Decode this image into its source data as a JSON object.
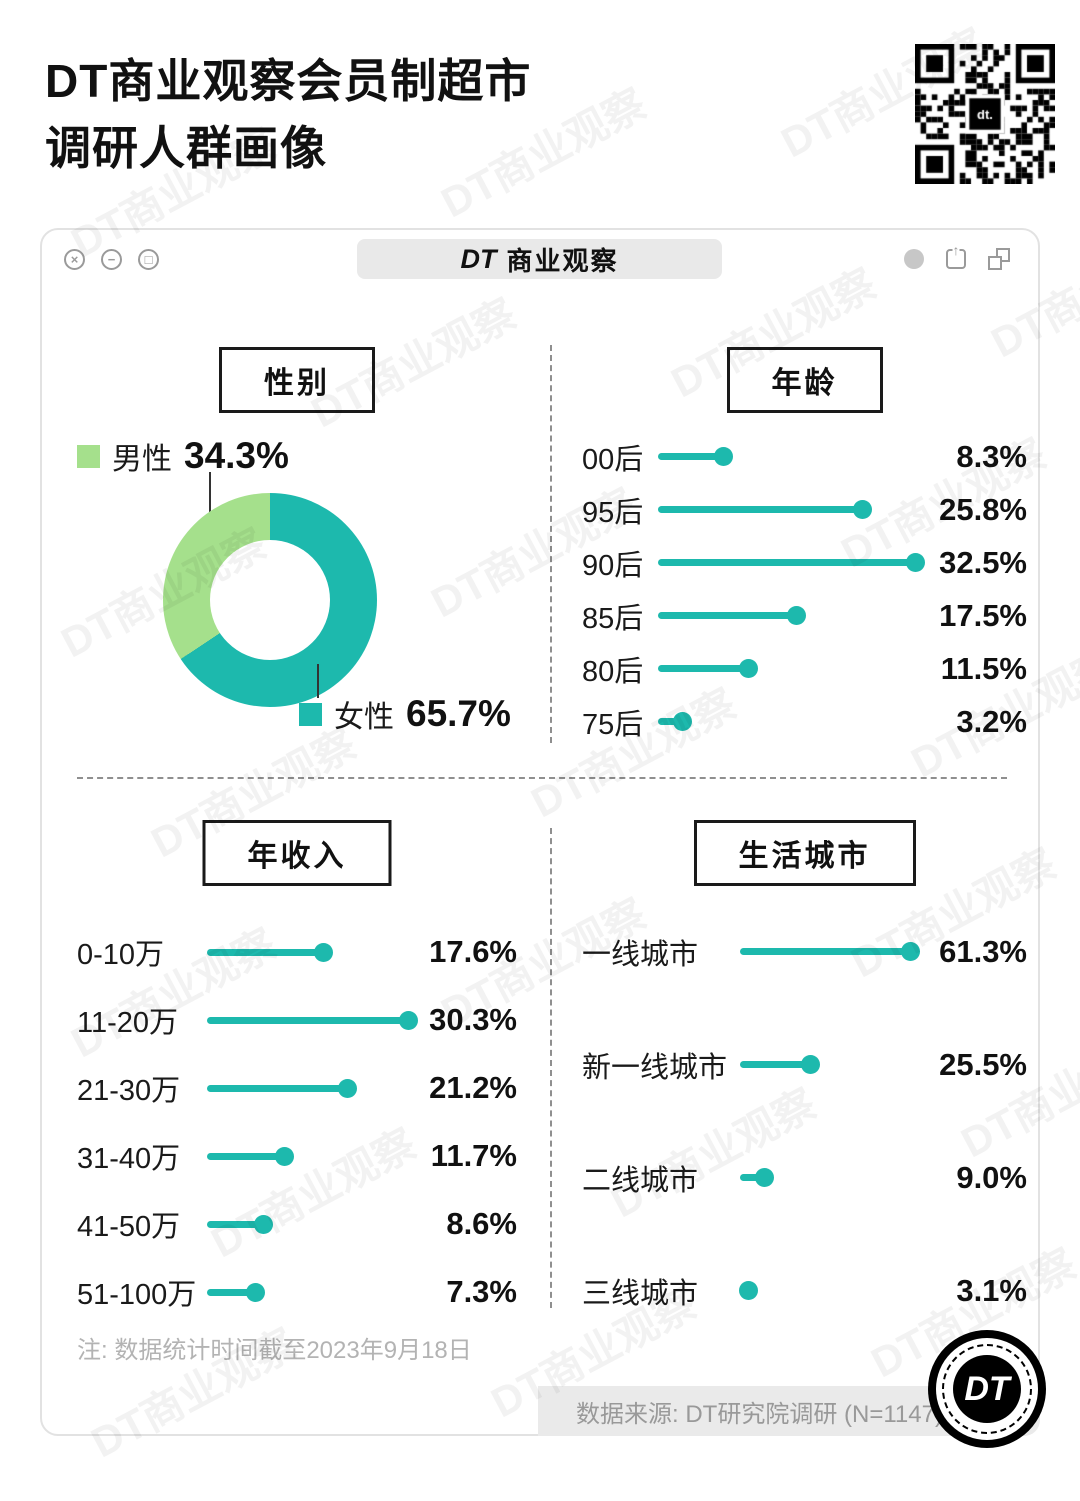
{
  "page": {
    "title_line1": "DT商业观察会员制超市",
    "title_line2": "调研人群画像",
    "watermark": "DT商业观察"
  },
  "window_bar": {
    "brand_dt": "DT",
    "brand_name": "商业观察",
    "close_glyph": "×",
    "minimize_glyph": "−",
    "maximize_glyph": "□",
    "share_glyph": "↑"
  },
  "colors": {
    "teal": "#1db9ad",
    "green": "#a5e08c"
  },
  "chart_data": [
    {
      "type": "pie",
      "title": "性别",
      "labels": [
        "男性",
        "女性"
      ],
      "values": [
        34.3,
        65.7
      ],
      "value_labels": [
        "34.3%",
        "65.7%"
      ],
      "colors": [
        "#a5e08c",
        "#1db9ad"
      ]
    },
    {
      "type": "bar",
      "title": "年龄",
      "categories": [
        "00后",
        "95后",
        "90后",
        "85后",
        "80后",
        "75后"
      ],
      "values": [
        8.3,
        25.8,
        32.5,
        17.5,
        11.5,
        3.2
      ],
      "value_labels": [
        "8.3%",
        "25.8%",
        "32.5%",
        "17.5%",
        "11.5%",
        "3.2%"
      ],
      "xlim": [
        0,
        32.5
      ]
    },
    {
      "type": "bar",
      "title": "年收入",
      "categories": [
        "0-10万",
        "11-20万",
        "21-30万",
        "31-40万",
        "41-50万",
        "51-100万"
      ],
      "values": [
        17.6,
        30.3,
        21.2,
        11.7,
        8.6,
        7.3
      ],
      "value_labels": [
        "17.6%",
        "30.3%",
        "21.2%",
        "11.7%",
        "8.6%",
        "7.3%"
      ],
      "xlim": [
        0,
        30.3
      ]
    },
    {
      "type": "bar",
      "title": "生活城市",
      "categories": [
        "一线城市",
        "新一线城市",
        "二线城市",
        "三线城市"
      ],
      "values": [
        61.3,
        25.5,
        9.0,
        3.1
      ],
      "value_labels": [
        "61.3%",
        "25.5%",
        "9.0%",
        "3.1%"
      ],
      "xlim": [
        0,
        61.3
      ]
    }
  ],
  "footer": {
    "note": "注: 数据统计时间截至2023年9月18日",
    "source": "数据来源: DT研究院调研 (N=1147)",
    "logo_text": "DT"
  }
}
